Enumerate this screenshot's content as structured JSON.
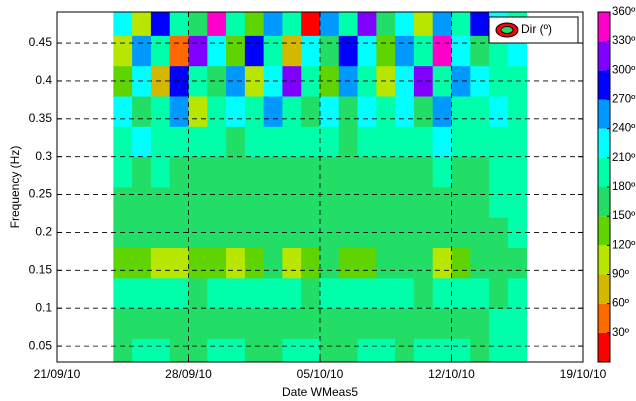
{
  "chart_data": {
    "type": "contour",
    "xlabel": "Date WMeas5",
    "ylabel": "Frequency (Hz)",
    "legend": "Dir (º)",
    "legend_corner": "upper right",
    "grid": true,
    "xlim": [
      "2010-09-21",
      "2010-10-19"
    ],
    "xticks": [
      {
        "value": "2010-09-21",
        "label": "21/09/10"
      },
      {
        "value": "2010-09-28",
        "label": "28/09/10"
      },
      {
        "value": "2010-10-05",
        "label": "05/10/10"
      },
      {
        "value": "2010-10-12",
        "label": "12/10/10"
      },
      {
        "value": "2010-10-19",
        "label": "19/10/10"
      }
    ],
    "ylim": [
      0.029,
      0.491
    ],
    "yticks": [
      0.05,
      0.1,
      0.15,
      0.2,
      0.25,
      0.3,
      0.35,
      0.4,
      0.45
    ],
    "clim": [
      0,
      360
    ],
    "cticks": [
      {
        "value": 30,
        "label": "30º"
      },
      {
        "value": 60,
        "label": "60º"
      },
      {
        "value": 90,
        "label": "90º"
      },
      {
        "value": 120,
        "label": "120º"
      },
      {
        "value": 150,
        "label": "150º"
      },
      {
        "value": 180,
        "label": "180º"
      },
      {
        "value": 210,
        "label": "210º"
      },
      {
        "value": 240,
        "label": "240º"
      },
      {
        "value": 270,
        "label": "270º"
      },
      {
        "value": 300,
        "label": "300º"
      },
      {
        "value": 330,
        "label": "330º"
      },
      {
        "value": 360,
        "label": "360º"
      }
    ],
    "colors": [
      "#ff0000",
      "#ff6a00",
      "#d4b800",
      "#b8e600",
      "#5fd400",
      "#22dd66",
      "#00ffaa",
      "#00ffff",
      "#0099ff",
      "#0000ff",
      "#8000ff",
      "#ff00cc"
    ],
    "x": [
      "2010-09-24",
      "2010-09-25",
      "2010-09-26",
      "2010-09-27",
      "2010-09-28",
      "2010-09-29",
      "2010-09-30",
      "2010-10-01",
      "2010-10-02",
      "2010-10-03",
      "2010-10-04",
      "2010-10-05",
      "2010-10-06",
      "2010-10-07",
      "2010-10-08",
      "2010-10-09",
      "2010-10-10",
      "2010-10-11",
      "2010-10-12",
      "2010-10-13",
      "2010-10-14",
      "2010-10-15"
    ],
    "y": [
      0.04,
      0.08,
      0.12,
      0.16,
      0.2,
      0.24,
      0.28,
      0.32,
      0.36,
      0.4,
      0.44,
      0.48
    ],
    "z": [
      [
        170,
        185,
        195,
        175,
        160,
        190,
        200,
        175,
        165,
        185,
        195,
        170,
        175,
        190,
        180,
        165,
        185,
        200,
        190,
        175,
        185,
        195
      ],
      [
        165,
        160,
        170,
        155,
        165,
        175,
        160,
        170,
        165,
        160,
        170,
        175,
        165,
        160,
        170,
        165,
        175,
        160,
        170,
        165,
        185,
        190
      ],
      [
        180,
        190,
        200,
        185,
        175,
        195,
        190,
        185,
        180,
        190,
        175,
        185,
        190,
        180,
        195,
        185,
        175,
        190,
        185,
        180,
        175,
        185
      ],
      [
        130,
        125,
        115,
        110,
        120,
        125,
        115,
        140,
        150,
        115,
        120,
        150,
        145,
        125,
        160,
        155,
        150,
        115,
        125,
        150,
        160,
        165
      ],
      [
        160,
        165,
        155,
        160,
        165,
        170,
        160,
        165,
        160,
        155,
        165,
        170,
        160,
        165,
        160,
        165,
        170,
        160,
        165,
        170,
        175,
        185
      ],
      [
        155,
        165,
        160,
        170,
        160,
        165,
        170,
        160,
        165,
        170,
        160,
        165,
        170,
        165,
        160,
        170,
        165,
        175,
        160,
        170,
        180,
        190
      ],
      [
        185,
        170,
        190,
        165,
        175,
        160,
        170,
        165,
        175,
        160,
        165,
        170,
        160,
        175,
        165,
        170,
        165,
        185,
        175,
        165,
        190,
        195
      ],
      [
        200,
        215,
        185,
        195,
        190,
        205,
        175,
        185,
        195,
        180,
        200,
        185,
        175,
        190,
        180,
        195,
        200,
        215,
        190,
        205,
        195,
        200
      ],
      [
        230,
        150,
        200,
        260,
        115,
        195,
        220,
        180,
        245,
        200,
        160,
        210,
        175,
        230,
        195,
        215,
        170,
        240,
        200,
        185,
        210,
        205
      ],
      [
        140,
        215,
        60,
        280,
        200,
        170,
        255,
        100,
        210,
        320,
        190,
        135,
        240,
        205,
        90,
        225,
        300,
        180,
        250,
        215,
        195,
        200
      ],
      [
        100,
        250,
        190,
        40,
        310,
        215,
        135,
        270,
        185,
        75,
        235,
        160,
        290,
        210,
        140,
        250,
        195,
        330,
        225,
        170,
        200,
        210
      ],
      [
        210,
        90,
        275,
        195,
        150,
        340,
        205,
        120,
        265,
        180,
        25,
        240,
        195,
        300,
        160,
        230,
        110,
        255,
        190,
        285,
        215,
        205
      ]
    ]
  }
}
